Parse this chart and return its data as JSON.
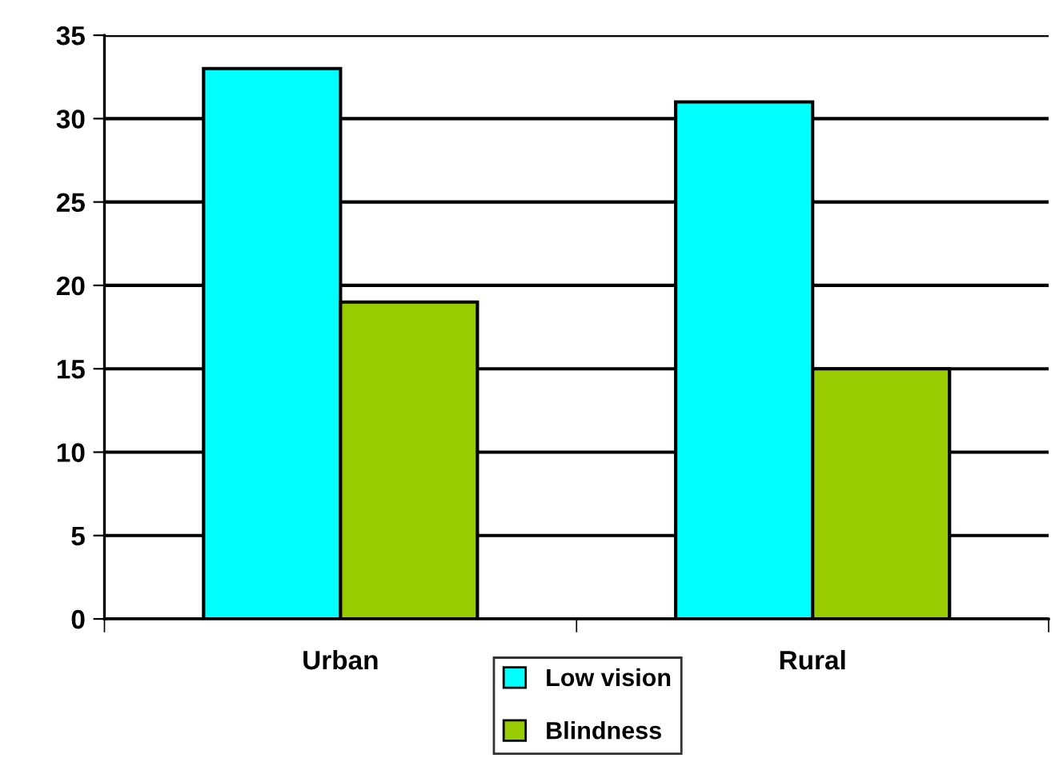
{
  "chart_data": {
    "type": "bar",
    "categories": [
      "Urban",
      "Rural"
    ],
    "series": [
      {
        "name": "Low vision",
        "color": "#00ffff",
        "values": [
          33,
          31
        ]
      },
      {
        "name": "Blindness",
        "color": "#99cc00",
        "values": [
          19,
          15
        ]
      }
    ],
    "ylim": [
      0,
      35
    ],
    "yticks": [
      0,
      5,
      10,
      15,
      20,
      25,
      30,
      35
    ],
    "grid": "y",
    "legend": "bottom"
  }
}
